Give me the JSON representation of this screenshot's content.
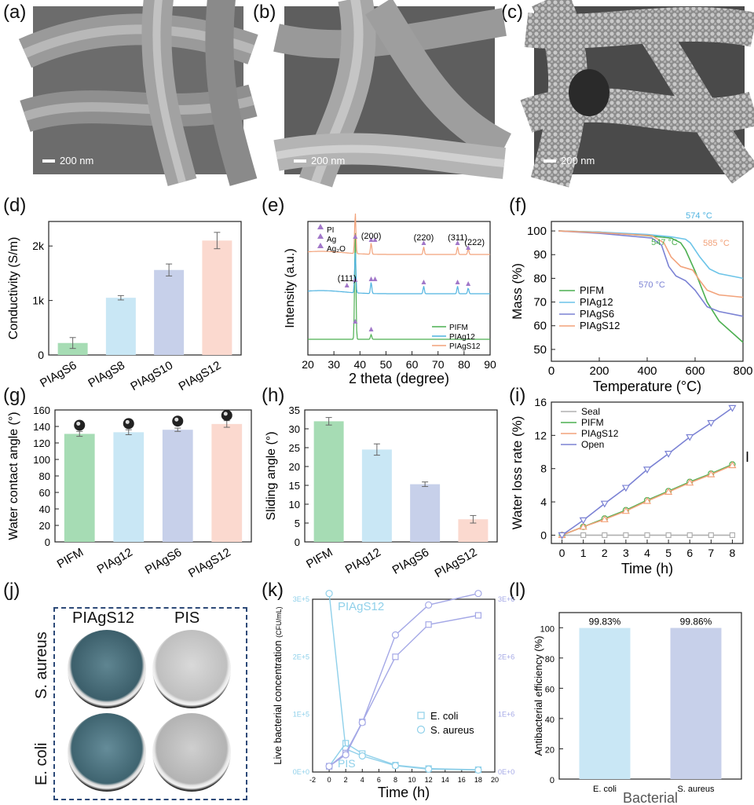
{
  "panel_labels": [
    "(a)",
    "(b)",
    "(c)",
    "(d)",
    "(e)",
    "(f)",
    "(g)",
    "(h)",
    "(i)",
    "(j)",
    "(k)",
    "(l)"
  ],
  "sem_scalebars": [
    "200 nm",
    "200 nm",
    "200 nm"
  ],
  "chart_data": [
    {
      "id": "d",
      "type": "bar",
      "categories": [
        "PIAgS6",
        "PIAgS8",
        "PIAgS10",
        "PIAgS12"
      ],
      "values": [
        220,
        1050,
        1560,
        2100
      ],
      "errors": [
        100,
        40,
        110,
        150
      ],
      "colors": [
        "#a6dcb4",
        "#c9e7f5",
        "#c7d0ea",
        "#fbd9cf"
      ],
      "ylabel": "Conductivity (S/m)",
      "yticks": [
        {
          "v": 0,
          "t": "0"
        },
        {
          "v": 1000,
          "t": "1k"
        },
        {
          "v": 2000,
          "t": "2k"
        }
      ],
      "ylim": [
        0,
        2450
      ]
    },
    {
      "id": "e",
      "type": "line",
      "xlabel": "2 theta (degree)",
      "ylabel": "Intensity (a.u.)",
      "xlim": [
        20,
        90
      ],
      "xticks": [
        20,
        30,
        40,
        50,
        60,
        70,
        80,
        90
      ],
      "series": [
        {
          "name": "PIFM",
          "color": "#4caf50"
        },
        {
          "name": "PIAg12",
          "color": "#4fb3e0"
        },
        {
          "name": "PIAgS12",
          "color": "#f2a27a"
        }
      ],
      "marker_legend": [
        "PI",
        "Ag",
        "Ag₂O"
      ],
      "peak_labels": [
        {
          "x": 44.3,
          "text": "(200)"
        },
        {
          "x": 64.5,
          "text": "(220)"
        },
        {
          "x": 77.5,
          "text": "(311)"
        },
        {
          "x": 81.6,
          "text": "(222)"
        },
        {
          "x": 35,
          "text": "(111)"
        }
      ]
    },
    {
      "id": "f",
      "type": "line",
      "xlabel": "Temperature (°C)",
      "ylabel": "Mass (%)",
      "xlim": [
        0,
        800
      ],
      "ylim": [
        45,
        104
      ],
      "xticks": [
        0,
        200,
        400,
        600,
        800
      ],
      "yticks": [
        50,
        60,
        70,
        80,
        90,
        100
      ],
      "annotations": [
        "574 °C",
        "547 °C",
        "585 °C",
        "570 °C"
      ],
      "annotation_colors": [
        "#4fb3e0",
        "#4caf50",
        "#f2a27a",
        "#7b82d4"
      ],
      "series": [
        {
          "name": "PIFM",
          "color": "#4caf50",
          "x": [
            30,
            200,
            400,
            500,
            540,
            560,
            600,
            650,
            700,
            800
          ],
          "y": [
            100,
            99.5,
            98,
            97,
            95,
            92,
            83,
            70,
            62,
            53
          ]
        },
        {
          "name": "PIAg12",
          "color": "#6cc4e8",
          "x": [
            30,
            200,
            400,
            500,
            560,
            580,
            620,
            660,
            700,
            800
          ],
          "y": [
            100,
            99.5,
            98.5,
            97.5,
            96.5,
            95,
            89,
            84,
            82,
            80
          ]
        },
        {
          "name": "PIAgS6",
          "color": "#7b82d4",
          "x": [
            30,
            200,
            420,
            460,
            490,
            520,
            560,
            600,
            650,
            700,
            800
          ],
          "y": [
            100,
            99,
            97,
            94,
            85,
            81,
            79,
            75,
            68,
            66,
            64
          ]
        },
        {
          "name": "PIAgS12",
          "color": "#f2a27a",
          "x": [
            30,
            200,
            420,
            470,
            500,
            540,
            590,
            620,
            650,
            700,
            800
          ],
          "y": [
            100,
            99.3,
            98,
            95,
            89,
            85,
            83.5,
            79,
            75,
            73,
            72
          ]
        }
      ]
    },
    {
      "id": "g",
      "type": "bar",
      "categories": [
        "PIFM",
        "PIAg12",
        "PIAgS6",
        "PIAgS12"
      ],
      "values": [
        131,
        133,
        136,
        143
      ],
      "errors": [
        3,
        3,
        2,
        4
      ],
      "colors": [
        "#a6dcb4",
        "#c9e7f5",
        "#c7d0ea",
        "#fbd9cf"
      ],
      "ylabel": "Water contact angle (°)",
      "yticks": [
        0,
        20,
        40,
        60,
        80,
        100,
        120,
        140,
        160
      ],
      "ylim": [
        0,
        160
      ]
    },
    {
      "id": "h",
      "type": "bar",
      "categories": [
        "PIFM",
        "PIAg12",
        "PIAgS6",
        "PIAgS12"
      ],
      "values": [
        32,
        24.5,
        15.3,
        6
      ],
      "errors": [
        1,
        1.5,
        0.6,
        1
      ],
      "colors": [
        "#a6dcb4",
        "#c9e7f5",
        "#c7d0ea",
        "#fbd9cf"
      ],
      "ylabel": "Sliding angle (°)",
      "yticks": [
        0,
        5,
        10,
        15,
        20,
        25,
        30,
        35
      ],
      "ylim": [
        0,
        35
      ]
    },
    {
      "id": "i",
      "type": "line",
      "xlabel": "Time (h)",
      "ylabel": "Water loss rate (%)",
      "xlim": [
        -0.5,
        8.5
      ],
      "ylim": [
        -1,
        16
      ],
      "xticks": [
        0,
        1,
        2,
        3,
        4,
        5,
        6,
        7,
        8
      ],
      "yticks": [
        0,
        4,
        8,
        12,
        16
      ],
      "series": [
        {
          "name": "Seal",
          "color": "#b0b0b0",
          "marker": "square",
          "x": [
            0,
            1,
            2,
            3,
            4,
            5,
            6,
            7,
            8
          ],
          "y": [
            0,
            0,
            0,
            0,
            0,
            0,
            0,
            0,
            0
          ]
        },
        {
          "name": "PIFM",
          "color": "#4caf50",
          "marker": "circle",
          "x": [
            0,
            1,
            2,
            3,
            4,
            5,
            6,
            7,
            8
          ],
          "y": [
            0,
            1.0,
            2.0,
            3.0,
            4.2,
            5.3,
            6.4,
            7.4,
            8.5
          ]
        },
        {
          "name": "PIAgS12",
          "color": "#f2a27a",
          "marker": "triangle-up",
          "x": [
            0,
            1,
            2,
            3,
            4,
            5,
            6,
            7,
            8
          ],
          "y": [
            0,
            1.0,
            1.9,
            2.9,
            4.1,
            5.2,
            6.3,
            7.3,
            8.4
          ]
        },
        {
          "name": "Open",
          "color": "#7b82d4",
          "marker": "triangle-down",
          "x": [
            0,
            1,
            2,
            3,
            4,
            5,
            6,
            7,
            8
          ],
          "y": [
            0,
            1.8,
            3.8,
            5.7,
            7.9,
            9.8,
            11.8,
            13.5,
            15.3
          ]
        }
      ],
      "side_mark": "I"
    },
    {
      "id": "k",
      "type": "line",
      "xlabel": "Time (h)",
      "ylabel": "Live bacterial concentration",
      "ylabel_unit": "(CFU/mL)",
      "xlim": [
        -2,
        20
      ],
      "xticks": [
        -2,
        0,
        2,
        4,
        6,
        8,
        10,
        12,
        14,
        16,
        18,
        20
      ],
      "ylim": [
        0,
        300000
      ],
      "yticks": [
        {
          "v": 0,
          "t": "0E+0"
        },
        {
          "v": 100000,
          "t": "1E+5"
        },
        {
          "v": 200000,
          "t": "2E+5"
        },
        {
          "v": 300000,
          "t": "3E+5"
        }
      ],
      "y2lim": [
        0,
        3000000
      ],
      "y2ticks": [
        {
          "v": 0,
          "t": "0E+0"
        },
        {
          "v": 1000000,
          "t": "1E+6"
        },
        {
          "v": 2000000,
          "t": "2E+6"
        },
        {
          "v": 3000000,
          "t": "3E+6"
        }
      ],
      "labels": [
        "PIAgS12",
        "PIS"
      ],
      "legend": [
        "E. coli",
        "S. aureus"
      ],
      "series": [
        {
          "name": "E. coli",
          "group": "PIAgS12",
          "marker": "square",
          "color": "#8fd0ea",
          "axis": "left",
          "x": [
            0,
            2,
            4,
            8,
            12,
            18
          ],
          "y": [
            10000,
            50000,
            32000,
            12000,
            6000,
            4000
          ]
        },
        {
          "name": "S. aureus",
          "group": "PIAgS12",
          "marker": "circle",
          "color": "#8fd0ea",
          "axis": "left",
          "x": [
            0,
            2,
            4,
            8,
            12,
            18
          ],
          "y": [
            310000,
            40000,
            28000,
            11000,
            5000,
            3500
          ]
        },
        {
          "name": "E. coli",
          "group": "PIS",
          "marker": "square",
          "color": "#a4a8e6",
          "axis": "right",
          "x": [
            0,
            2,
            4,
            8,
            12,
            18
          ],
          "y": [
            100000,
            330000,
            870000,
            2000000,
            2560000,
            2720000
          ]
        },
        {
          "name": "S. aureus",
          "group": "PIS",
          "marker": "circle",
          "color": "#a4a8e6",
          "axis": "right",
          "x": [
            0,
            2,
            4,
            8,
            12,
            18
          ],
          "y": [
            100000,
            300000,
            860000,
            2380000,
            2900000,
            3100000
          ]
        }
      ]
    },
    {
      "id": "l",
      "type": "bar",
      "categories": [
        "E. coli",
        "S. aureus"
      ],
      "values": [
        99.83,
        99.86
      ],
      "value_labels": [
        "99.83%",
        "99.86%"
      ],
      "colors": [
        "#c9e7f5",
        "#c7d0ea"
      ],
      "xlabel": "Bacterial",
      "ylabel": "Antibacterial efficiency (%)",
      "yticks": [
        0,
        20,
        40,
        60,
        80,
        100
      ],
      "ylim": [
        0,
        110
      ]
    }
  ],
  "plates": {
    "columns": [
      "PIAgS12",
      "PIS"
    ],
    "rows": [
      "S. aureus",
      "E. coli"
    ]
  }
}
